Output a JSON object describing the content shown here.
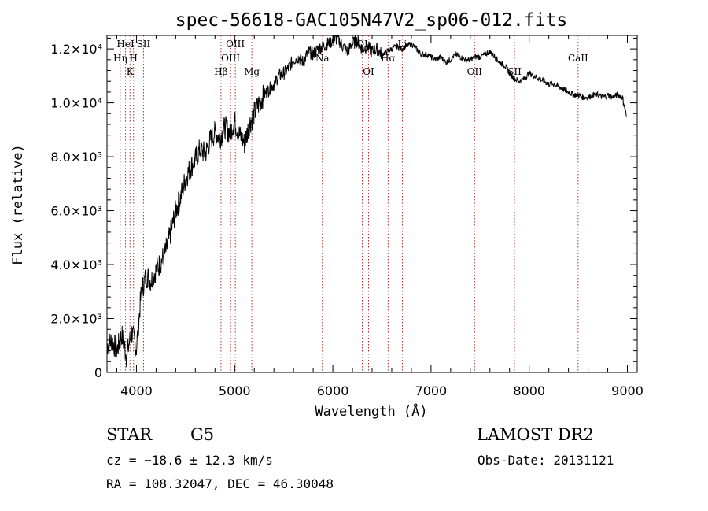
{
  "chart_data": {
    "type": "line",
    "title": "spec-56618-GAC105N47V2_sp06-012.fits",
    "xlabel": "Wavelength (Å)",
    "ylabel": "Flux (relative)",
    "xlim": [
      3700,
      9100
    ],
    "ylim": [
      0,
      12500
    ],
    "x_ticks": [
      4000,
      5000,
      6000,
      7000,
      8000,
      9000
    ],
    "y_ticks": [
      {
        "value": 0,
        "label": "0"
      },
      {
        "value": 2000,
        "label": "2.0×10³"
      },
      {
        "value": 4000,
        "label": "4.0×10³"
      },
      {
        "value": 6000,
        "label": "6.0×10³"
      },
      {
        "value": 8000,
        "label": "8.0×10³"
      },
      {
        "value": 10000,
        "label": "1.0×10⁴"
      },
      {
        "value": 12000,
        "label": "1.2×10⁴"
      }
    ],
    "grid": false,
    "series": [
      {
        "x": [
          3700,
          3750,
          3800,
          3850,
          3900,
          3950,
          4000,
          4050,
          4100,
          4150,
          4200,
          4250,
          4300,
          4350,
          4400,
          4450,
          4500,
          4550,
          4600,
          4650,
          4700,
          4750,
          4800,
          4850,
          4900,
          4950,
          5000,
          5050,
          5100,
          5150,
          5200,
          5250,
          5300,
          5350,
          5400,
          5450,
          5500,
          5550,
          5600,
          5650,
          5700,
          5750,
          5800,
          5850,
          5900,
          5950,
          6000,
          6050,
          6100,
          6150,
          6200,
          6250,
          6300,
          6350,
          6400,
          6450,
          6500,
          6550,
          6600,
          6650,
          6700,
          6750,
          6800,
          6850,
          6900,
          6950,
          7000,
          7050,
          7100,
          7150,
          7200,
          7250,
          7300,
          7350,
          7400,
          7450,
          7500,
          7550,
          7600,
          7650,
          7700,
          7750,
          7800,
          7850,
          7900,
          7950,
          8000,
          8050,
          8100,
          8150,
          8200,
          8250,
          8300,
          8350,
          8400,
          8450,
          8500,
          8550,
          8600,
          8650,
          8700,
          8750,
          8800,
          8850,
          8900,
          8950,
          8990
        ],
        "y": [
          1000,
          1200,
          800,
          1400,
          600,
          1500,
          900,
          3000,
          3600,
          3400,
          3800,
          4100,
          4500,
          5200,
          6000,
          6500,
          7200,
          7600,
          7900,
          8300,
          8100,
          8600,
          8900,
          8700,
          9100,
          8900,
          9300,
          8800,
          8500,
          9200,
          9600,
          10000,
          10300,
          10500,
          10700,
          11000,
          11100,
          11300,
          11600,
          11700,
          11500,
          11900,
          11800,
          12000,
          12100,
          12200,
          12300,
          12400,
          12100,
          11900,
          12200,
          12300,
          12000,
          12100,
          11900,
          12000,
          11800,
          11900,
          12000,
          12100,
          12000,
          12100,
          12200,
          12000,
          11800,
          11800,
          11700,
          11600,
          11700,
          11500,
          11600,
          11800,
          11700,
          11600,
          11600,
          11700,
          11700,
          11800,
          11900,
          11700,
          11500,
          11400,
          11100,
          10900,
          10800,
          10900,
          11100,
          11000,
          10900,
          10800,
          10700,
          10700,
          10600,
          10500,
          10400,
          10300,
          10300,
          10200,
          10200,
          10300,
          10300,
          10200,
          10300,
          10200,
          10300,
          10200,
          9500
        ]
      }
    ],
    "lines": [
      {
        "x": 3835,
        "label": "Hη",
        "row": 2
      },
      {
        "x": 3889,
        "label": "HeI",
        "row": 1
      },
      {
        "x": 3934,
        "label": "K",
        "row": 3
      },
      {
        "x": 3970,
        "label": "H",
        "row": 2
      },
      {
        "x": 4072,
        "label": "SII",
        "row": 1
      },
      {
        "x": 4861,
        "label": "Hβ",
        "row": 3
      },
      {
        "x": 4959,
        "label": "OIII",
        "row": 2
      },
      {
        "x": 5007,
        "label": "OIII",
        "row": 1
      },
      {
        "x": 5175,
        "label": "Mg",
        "row": 3
      },
      {
        "x": 5893,
        "label": "Na",
        "row": 2
      },
      {
        "x": 6300,
        "label": "OI",
        "row": 1
      },
      {
        "x": 6364,
        "label": "OI",
        "row": 3
      },
      {
        "x": 6563,
        "label": "Hα",
        "row": 2
      },
      {
        "x": 6708,
        "label": "Li",
        "row": 1
      },
      {
        "x": 7444,
        "label": "OII",
        "row": 3
      },
      {
        "x": 7850,
        "label": "SII",
        "row": 3
      },
      {
        "x": 8498,
        "label": "CaII",
        "row": 2
      }
    ]
  },
  "info": {
    "object_class": "STAR",
    "subclass": "G5",
    "survey": "LAMOST DR2",
    "cz": "cz = −18.6 ± 12.3 km/s",
    "obs_date": "Obs-Date: 20131121",
    "coords": "RA = 108.32047, DEC =  46.30048"
  }
}
